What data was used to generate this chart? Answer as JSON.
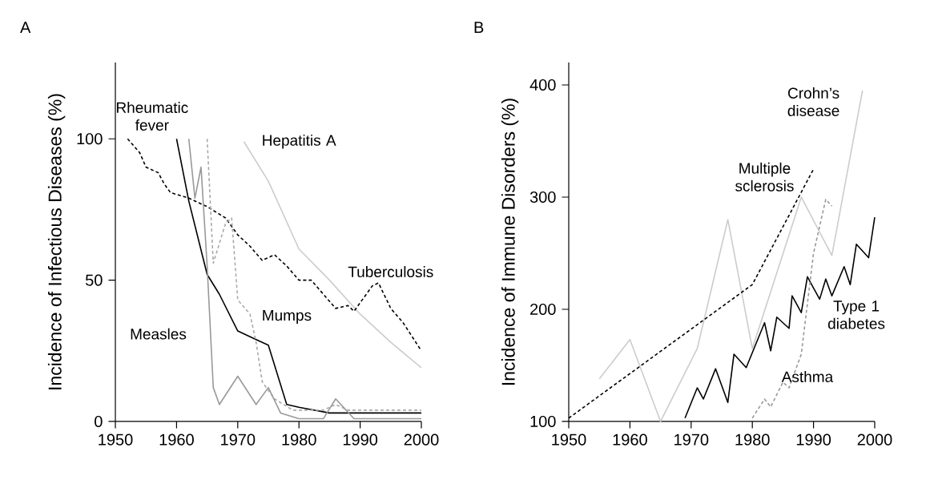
{
  "chart_data": [
    {
      "type": "line",
      "title": "A",
      "ylabel": "Incidence of Infectious Diseases (%)",
      "xlim": [
        1950,
        2000
      ],
      "ylim": [
        0,
        127
      ],
      "xticks": [
        1950,
        1960,
        1970,
        1980,
        1990,
        2000
      ],
      "yticks": [
        0,
        50,
        100
      ],
      "grid": false,
      "legend": false,
      "marker": "none",
      "series": [
        {
          "name": "Rheumatic fever",
          "color": "#000000",
          "line_style": "solid",
          "x": [
            1960,
            1962,
            1965,
            1967,
            1970,
            1973,
            1975,
            1978,
            1980,
            1985,
            2000
          ],
          "values": [
            100,
            78,
            52,
            45,
            32,
            29,
            27,
            6,
            5,
            3,
            3
          ]
        },
        {
          "name": "Hepatitis A",
          "color": "#cccccc",
          "line_style": "solid",
          "x": [
            1971,
            1975,
            1980,
            1985,
            1990,
            1995,
            2000
          ],
          "values": [
            99,
            85,
            61,
            50,
            38,
            28,
            19
          ]
        },
        {
          "name": "Tuberculosis",
          "color": "#000000",
          "line_style": "dashed",
          "x": [
            1952,
            1954,
            1955,
            1957,
            1958,
            1959,
            1962,
            1965,
            1968,
            1970,
            1972,
            1974,
            1976,
            1978,
            1980,
            1982,
            1984,
            1986,
            1988,
            1989,
            1990,
            1992,
            1993,
            1995,
            1997,
            2000
          ],
          "values": [
            100,
            95,
            90,
            88,
            84,
            81,
            79,
            76,
            72,
            66,
            62,
            57,
            59,
            55,
            50,
            50,
            45,
            40,
            41,
            39,
            42,
            48,
            49,
            40,
            35,
            25
          ]
        },
        {
          "name": "Mumps",
          "color": "#aaaaaa",
          "line_style": "dashed",
          "x": [
            1965,
            1966,
            1968,
            1969,
            1970,
            1972,
            1973,
            1974,
            1976,
            1979,
            1984,
            1986,
            1988,
            2000
          ],
          "values": [
            100,
            56,
            70,
            72,
            43,
            38,
            28,
            14,
            8,
            4,
            4,
            6,
            4,
            4
          ]
        },
        {
          "name": "Measles",
          "color": "#999999",
          "line_style": "solid",
          "x": [
            1962,
            1963,
            1964,
            1965,
            1966,
            1967,
            1970,
            1973,
            1975,
            1977,
            1980,
            1984,
            1986,
            1989,
            2000
          ],
          "values": [
            100,
            79,
            90,
            55,
            12,
            6,
            16,
            6,
            12,
            3,
            1,
            1,
            8,
            1,
            1
          ]
        }
      ]
    },
    {
      "type": "line",
      "title": "B",
      "ylabel": "Incidence of Immune Disorders (%)",
      "xlim": [
        1950,
        2000
      ],
      "ylim": [
        100,
        420
      ],
      "xticks": [
        1950,
        1960,
        1970,
        1980,
        1990,
        2000
      ],
      "yticks": [
        100,
        200,
        300,
        400
      ],
      "grid": false,
      "legend": false,
      "marker": "none",
      "series": [
        {
          "name": "Crohn’s disease",
          "color": "#cccccc",
          "line_style": "solid",
          "x": [
            1955,
            1960,
            1965,
            1971,
            1976,
            1980,
            1988,
            1993,
            1998
          ],
          "values": [
            138,
            173,
            100,
            165,
            280,
            165,
            300,
            248,
            395
          ]
        },
        {
          "name": "Multiple sclerosis",
          "color": "#000000",
          "line_style": "dashed",
          "x": [
            1950,
            1980,
            1990
          ],
          "values": [
            103,
            222,
            325
          ]
        },
        {
          "name": "Type 1 diabetes",
          "color": "#000000",
          "line_style": "solid",
          "x": [
            1969,
            1971,
            1972,
            1974,
            1976,
            1977,
            1979,
            1982,
            1983,
            1984,
            1986,
            1986.5,
            1988,
            1989,
            1991,
            1992,
            1993,
            1995,
            1996,
            1997,
            1999,
            2000
          ],
          "values": [
            103,
            130,
            120,
            147,
            117,
            160,
            148,
            188,
            163,
            193,
            183,
            212,
            197,
            229,
            209,
            227,
            212,
            238,
            222,
            258,
            246,
            282
          ]
        },
        {
          "name": "Asthma",
          "color": "#999999",
          "line_style": "dashed",
          "x": [
            1980,
            1982,
            1983,
            1985,
            1986,
            1988,
            1990,
            1992,
            1993
          ],
          "values": [
            103,
            120,
            113,
            135,
            130,
            160,
            250,
            298,
            292
          ]
        }
      ]
    }
  ]
}
